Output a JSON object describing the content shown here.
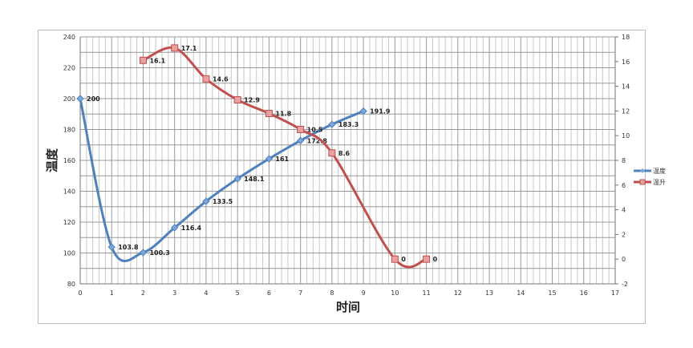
{
  "chart_data": {
    "type": "line",
    "xlabel": "时间",
    "ylabel": "温度",
    "xlim": [
      0,
      17
    ],
    "ylim": [
      80,
      240
    ],
    "y2lim": [
      -2,
      18
    ],
    "xticks": [
      0,
      1,
      2,
      3,
      4,
      5,
      6,
      7,
      8,
      9,
      10,
      11,
      12,
      13,
      14,
      15,
      16,
      17
    ],
    "yticks": [
      80,
      100,
      120,
      140,
      160,
      180,
      200,
      220,
      240
    ],
    "y2ticks": [
      -2,
      0,
      2,
      4,
      6,
      8,
      10,
      12,
      14,
      16,
      18
    ],
    "grid": true,
    "legend_position": "right",
    "series": [
      {
        "name": "温度",
        "axis": "left",
        "color": "#4f81bd",
        "marker": "diamond",
        "x": [
          0,
          1,
          2,
          3,
          4,
          5,
          6,
          7,
          8,
          9
        ],
        "values": [
          200,
          103.8,
          100.3,
          116.4,
          133.5,
          148.1,
          161,
          172.8,
          183.3,
          191.9
        ],
        "labels": [
          "200",
          "103.8",
          "100.3",
          "116.4",
          "133.5",
          "148.1",
          "161",
          "172.8",
          "183.3",
          "191.9"
        ]
      },
      {
        "name": "温升",
        "axis": "right",
        "color": "#c0504d",
        "marker": "square",
        "x": [
          2,
          3,
          4,
          5,
          6,
          7,
          8,
          10,
          11
        ],
        "values": [
          16.1,
          17.1,
          14.6,
          12.9,
          11.8,
          10.5,
          8.6,
          0,
          0
        ],
        "labels": [
          "16.1",
          "17.1",
          "14.6",
          "12.9",
          "11.8",
          "10.5",
          "8.6",
          "0",
          "0"
        ]
      }
    ]
  }
}
